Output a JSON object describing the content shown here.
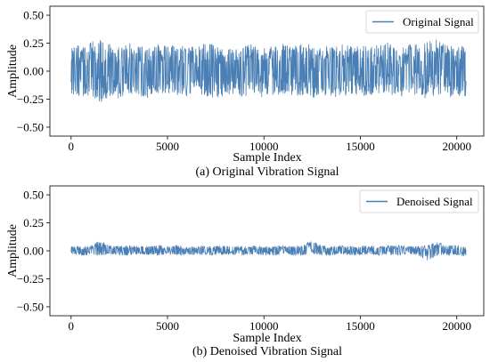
{
  "chart_data": [
    {
      "type": "line",
      "caption": "(a) Original Vibration Signal",
      "xlabel": "Sample Index",
      "ylabel": "Amplitude",
      "xlim": [
        -1100,
        21400
      ],
      "ylim": [
        -0.58,
        0.58
      ],
      "xticks": [
        0,
        5000,
        10000,
        15000,
        20000
      ],
      "xtick_labels": [
        "0",
        "5000",
        "10000",
        "15000",
        "20000"
      ],
      "yticks": [
        0.5,
        0.25,
        0.0,
        -0.25,
        -0.5
      ],
      "ytick_labels": [
        "0.50",
        "0.25",
        "0.00",
        "−0.25",
        "−0.50"
      ],
      "legend_position": "top-right",
      "color": "#4a7fb5",
      "series": [
        {
          "name": "Original Signal",
          "n_samples": 20480,
          "x": [
            0,
            500,
            1000,
            1500,
            2000,
            2500,
            3000,
            3500,
            4000,
            4500,
            5000,
            5500,
            6000,
            6500,
            7000,
            7500,
            8000,
            8500,
            9000,
            9500,
            10000,
            10500,
            11000,
            11500,
            12000,
            12500,
            13000,
            13500,
            14000,
            14500,
            15000,
            15500,
            16000,
            16500,
            17000,
            17500,
            18000,
            18500,
            19000,
            19500,
            20000,
            20480
          ],
          "upper": [
            0.27,
            0.22,
            0.25,
            0.3,
            0.24,
            0.22,
            0.25,
            0.23,
            0.21,
            0.24,
            0.22,
            0.25,
            0.2,
            0.23,
            0.26,
            0.24,
            0.22,
            0.2,
            0.24,
            0.25,
            0.21,
            0.24,
            0.26,
            0.22,
            0.25,
            0.23,
            0.21,
            0.25,
            0.24,
            0.22,
            0.22,
            0.25,
            0.23,
            0.26,
            0.21,
            0.24,
            0.24,
            0.26,
            0.3,
            0.23,
            0.22,
            0.22
          ],
          "lower": [
            -0.2,
            -0.24,
            -0.22,
            -0.3,
            -0.22,
            -0.25,
            -0.2,
            -0.22,
            -0.24,
            -0.21,
            -0.22,
            -0.22,
            -0.25,
            -0.2,
            -0.22,
            -0.26,
            -0.22,
            -0.21,
            -0.23,
            -0.2,
            -0.24,
            -0.22,
            -0.2,
            -0.23,
            -0.22,
            -0.25,
            -0.21,
            -0.22,
            -0.25,
            -0.2,
            -0.22,
            -0.22,
            -0.21,
            -0.23,
            -0.24,
            -0.2,
            -0.22,
            -0.25,
            -0.21,
            -0.24,
            -0.23,
            -0.25
          ]
        }
      ]
    },
    {
      "type": "line",
      "caption": "(b) Denoised Vibration Signal",
      "xlabel": "Sample Index",
      "ylabel": "Amplitude",
      "xlim": [
        -1100,
        21400
      ],
      "ylim": [
        -0.58,
        0.58
      ],
      "xticks": [
        0,
        5000,
        10000,
        15000,
        20000
      ],
      "xtick_labels": [
        "0",
        "5000",
        "10000",
        "15000",
        "20000"
      ],
      "yticks": [
        0.5,
        0.25,
        0.0,
        -0.25,
        -0.5
      ],
      "ytick_labels": [
        "0.50",
        "0.25",
        "0.00",
        "−0.25",
        "−0.50"
      ],
      "legend_position": "top-right",
      "color": "#4a7fb5",
      "series": [
        {
          "name": "Denoised Signal",
          "n_samples": 20480,
          "x": [
            0,
            500,
            1000,
            1500,
            2000,
            2500,
            3000,
            3500,
            4000,
            4500,
            5000,
            5500,
            6000,
            6500,
            7000,
            7500,
            8000,
            8500,
            9000,
            9500,
            10000,
            10500,
            11000,
            11500,
            12000,
            12500,
            13000,
            13500,
            14000,
            14500,
            15000,
            15500,
            16000,
            16500,
            17000,
            17500,
            18000,
            18500,
            19000,
            19500,
            20000,
            20480
          ],
          "upper": [
            0.04,
            0.04,
            0.05,
            0.09,
            0.05,
            0.04,
            0.05,
            0.04,
            0.04,
            0.05,
            0.04,
            0.05,
            0.04,
            0.04,
            0.05,
            0.04,
            0.05,
            0.04,
            0.04,
            0.05,
            0.04,
            0.04,
            0.05,
            0.04,
            0.05,
            0.1,
            0.05,
            0.04,
            0.05,
            0.04,
            0.04,
            0.05,
            0.04,
            0.05,
            0.05,
            0.04,
            0.04,
            0.05,
            0.08,
            0.05,
            0.05,
            0.03
          ],
          "lower": [
            -0.03,
            -0.04,
            -0.04,
            -0.04,
            -0.03,
            -0.04,
            -0.04,
            -0.03,
            -0.04,
            -0.04,
            -0.03,
            -0.04,
            -0.04,
            -0.03,
            -0.04,
            -0.04,
            -0.03,
            -0.04,
            -0.04,
            -0.03,
            -0.04,
            -0.04,
            -0.03,
            -0.04,
            -0.04,
            -0.03,
            -0.04,
            -0.04,
            -0.03,
            -0.04,
            -0.04,
            -0.03,
            -0.04,
            -0.04,
            -0.04,
            -0.03,
            -0.04,
            -0.09,
            -0.04,
            -0.04,
            -0.04,
            -0.05
          ]
        }
      ]
    }
  ]
}
